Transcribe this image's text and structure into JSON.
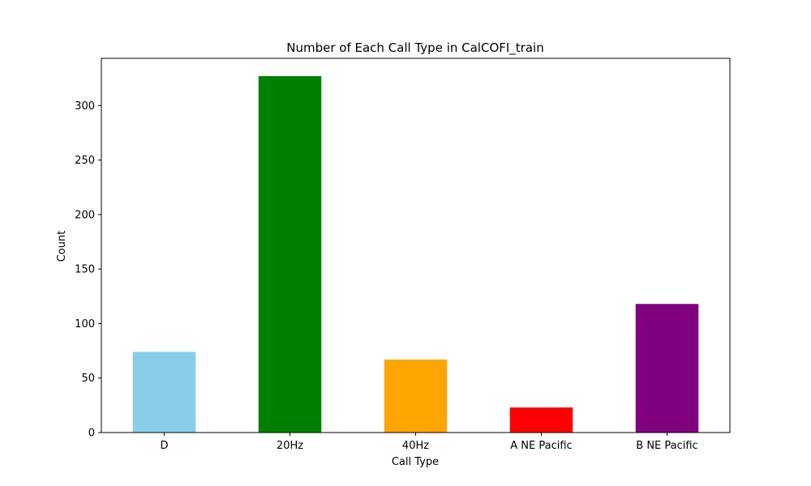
{
  "chart_data": {
    "type": "bar",
    "title": "Number of Each Call Type in CalCOFI_train",
    "xlabel": "Call Type",
    "ylabel": "Count",
    "categories": [
      "D",
      "20Hz",
      "40Hz",
      "A NE Pacific",
      "B NE Pacific"
    ],
    "values": [
      74,
      327,
      67,
      23,
      118
    ],
    "colors": [
      "#87ceeb",
      "#008000",
      "#ffa500",
      "#ff0000",
      "#800080"
    ],
    "ylim": [
      0,
      343.35
    ],
    "yticks": [
      0,
      50,
      100,
      150,
      200,
      250,
      300
    ],
    "grid": false,
    "legend": "none"
  }
}
